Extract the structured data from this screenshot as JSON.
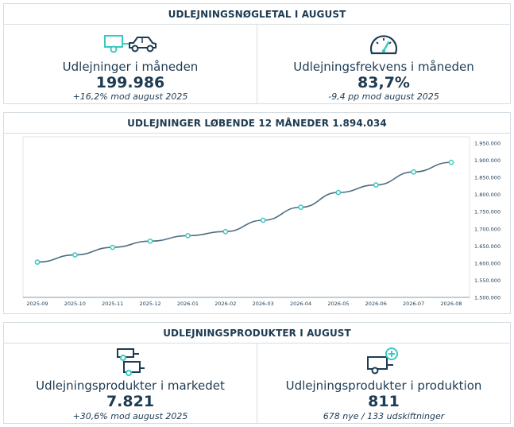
{
  "kpi_panel": {
    "header": "UDLEJNINGSNØGLETAL I AUGUST",
    "left": {
      "icon": "car-trailer-icon",
      "label": "Udlejninger i måneden",
      "value": "199.986",
      "sub": "+16,2% mod august 2025"
    },
    "right": {
      "icon": "speedometer-icon",
      "label": "Udlejningsfrekvens i måneden",
      "value": "83,7%",
      "sub": "-9,4 pp mod august 2025"
    }
  },
  "chart_panel": {
    "header": "UDLEJNINGER LØBENDE 12 MÅNEDER 1.894.034"
  },
  "products_panel": {
    "header": "UDLEJNINGSPRODUKTER I AUGUST",
    "left": {
      "icon": "stacked-trailers-icon",
      "label": "Udlejningsprodukter i markedet",
      "value": "7.821",
      "sub": "+30,6% mod august 2025"
    },
    "right": {
      "icon": "trailer-plus-icon",
      "label": "Udlejningsprodukter i produktion",
      "value": "811",
      "sub": "678 nye / 133 udskiftninger"
    }
  },
  "colors": {
    "navy": "#1d3b52",
    "teal": "#3cc8c0",
    "line": "#4f6d82",
    "border": "#d6dde2"
  },
  "chart_data": {
    "type": "line",
    "title": "",
    "categories": [
      "2025-09",
      "2025-10",
      "2025-11",
      "2025-12",
      "2026-01",
      "2026-02",
      "2026-03",
      "2026-04",
      "2026-05",
      "2026-06",
      "2026-07",
      "2026-08"
    ],
    "series": [
      {
        "values": [
          1603000,
          1624000,
          1646000,
          1664000,
          1680000,
          1692000,
          1725000,
          1763000,
          1806000,
          1828000,
          1866000,
          1894034
        ]
      }
    ],
    "ylim": [
      1500000,
      1950000
    ],
    "y_ticks": [
      1500000,
      1550000,
      1600000,
      1650000,
      1700000,
      1750000,
      1800000,
      1850000,
      1900000,
      1950000
    ],
    "y_tick_labels": [
      "1.500.000",
      "1.550.000",
      "1.600.000",
      "1.650.000",
      "1.700.000",
      "1.750.000",
      "1.800.000",
      "1.850.000",
      "1.900.000",
      "1.950.000"
    ],
    "y_axis_position": "right",
    "grid": false,
    "legend": "none"
  }
}
